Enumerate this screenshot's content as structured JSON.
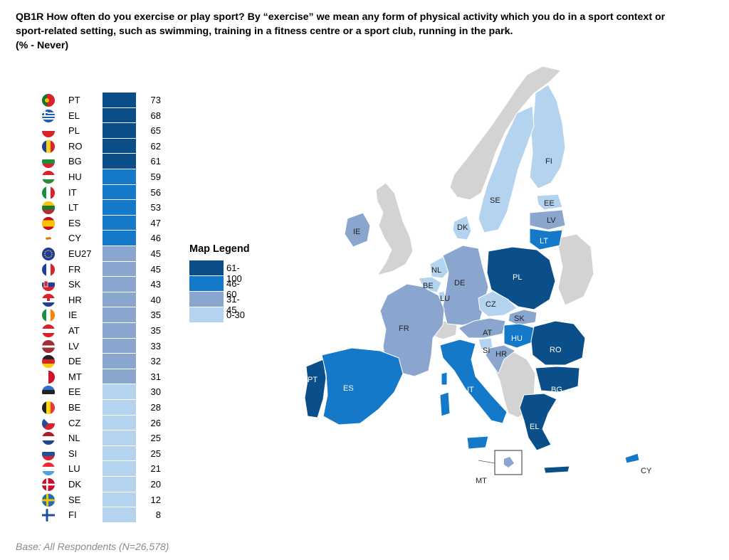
{
  "title_lines": [
    "QB1R How often do you exercise or play sport? By “exercise” we mean any form of physical activity which you do in a sport context or",
    "sport-related setting, such as swimming, training in a fitness centre or a sport club, running in the park.",
    "(% - Never)"
  ],
  "footer": "Base: All Respondents (N=26,578)",
  "colors": {
    "band_61_100": "#0a4f8a",
    "band_46_60": "#1479c9",
    "band_31_45": "#8aa6cf",
    "band_0_30": "#b3d3ee",
    "non_eu": "#d3d3d3"
  },
  "legend": {
    "title": "Map Legend",
    "items": [
      {
        "label": "61-100",
        "color": "#0a4f8a"
      },
      {
        "label": "46-60",
        "color": "#1479c9"
      },
      {
        "label": "31-45",
        "color": "#8aa6cf"
      },
      {
        "label": "0-30",
        "color": "#b3d3ee"
      }
    ]
  },
  "chart_data": {
    "type": "bar",
    "orientation": "horizontal",
    "categories": [
      "PT",
      "EL",
      "PL",
      "RO",
      "BG",
      "HU",
      "IT",
      "LT",
      "ES",
      "CY",
      "EU27",
      "FR",
      "SK",
      "HR",
      "IE",
      "AT",
      "LV",
      "DE",
      "MT",
      "EE",
      "BE",
      "CZ",
      "NL",
      "SI",
      "LU",
      "DK",
      "SE",
      "FI"
    ],
    "values": [
      73,
      68,
      65,
      62,
      61,
      59,
      56,
      53,
      47,
      46,
      45,
      45,
      43,
      40,
      35,
      35,
      33,
      32,
      31,
      30,
      28,
      26,
      25,
      25,
      21,
      20,
      12,
      8
    ],
    "flags": [
      "portugal-flag-icon",
      "greece-flag-icon",
      "poland-flag-icon",
      "romania-flag-icon",
      "bulgaria-flag-icon",
      "hungary-flag-icon",
      "italy-flag-icon",
      "lithuania-flag-icon",
      "spain-flag-icon",
      "cyprus-flag-icon",
      "eu-flag-icon",
      "france-flag-icon",
      "slovakia-flag-icon",
      "croatia-flag-icon",
      "ireland-flag-icon",
      "austria-flag-icon",
      "latvia-flag-icon",
      "germany-flag-icon",
      "malta-flag-icon",
      "estonia-flag-icon",
      "belgium-flag-icon",
      "czechia-flag-icon",
      "netherlands-flag-icon",
      "slovenia-flag-icon",
      "luxembourg-flag-icon",
      "denmark-flag-icon",
      "sweden-flag-icon",
      "finland-flag-icon"
    ]
  },
  "map_labels": {
    "FI": "FI",
    "SE": "SE",
    "EE": "EE",
    "LV": "LV",
    "LT": "LT",
    "DK": "DK",
    "IE": "IE",
    "NL": "NL",
    "BE": "BE",
    "LU": "LU",
    "DE": "DE",
    "PL": "PL",
    "CZ": "CZ",
    "SK": "SK",
    "FR": "FR",
    "AT": "AT",
    "HU": "HU",
    "SI": "SI",
    "HR": "HR",
    "RO": "RO",
    "PT": "PT",
    "ES": "ES",
    "IT": "IT",
    "BG": "BG",
    "EL": "EL",
    "MT": "MT",
    "CY": "CY"
  }
}
